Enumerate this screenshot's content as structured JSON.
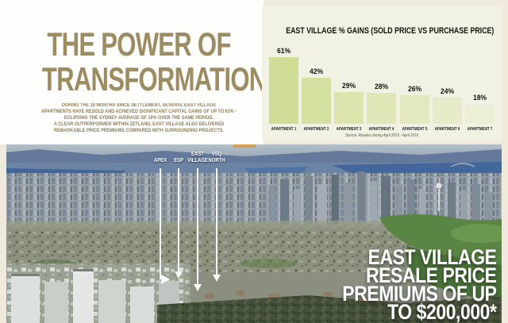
{
  "page": {
    "hero": {
      "title_line1": "THE POWER OF",
      "title_line2": "TRANSFORMATION",
      "body_lines": [
        "DURING THE 18 MONTHS SINCE SETTLEMENT, SEVERAL EAST VILLAGE",
        "APARTMENTS HAVE RESOLD AND ACHIEVED SIGNIFICANT CAPITAL GAINS OF UP TO 61% -",
        "ECLIPSING THE SYDNEY AVERAGE OF 18% OVER THE SAME PERIOD.",
        "A CLEAR OUTPERFORMER WITHIN ZETLAND, EAST VILLAGE ALSO DELIVERED",
        "REMARKABLE PRICE PREMIUMS COMPARED WITH SURROUNDING PROJECTS."
      ]
    },
    "photo": {
      "markers": [
        {
          "line1": "APEX",
          "line2": ""
        },
        {
          "line1": "ESP",
          "line2": ""
        },
        {
          "line1": "EAST",
          "line2": "VILLAGE"
        },
        {
          "line1": "VSQ",
          "line2": "NORTH"
        }
      ],
      "headline_lines": [
        "EAST VILLAGE",
        "RESALE PRICE",
        "PREMIUMS OF UP",
        "TO $200,000*"
      ]
    },
    "colors": {
      "title_gold": "#9d8c62",
      "body_gold": "#8d7c55",
      "page_bg": "#efeadb",
      "chart_panel_bg": "#f1f2e3",
      "headline_white": "#ffffff"
    }
  },
  "chart_data": {
    "type": "bar",
    "title": "EAST VILLAGE % GAINS (SOLD PRICE VS PURCHASE PRICE)",
    "categories": [
      "APARTMENT 1",
      "APARTMENT 2",
      "APARTMENT 3",
      "APARTMENT 4",
      "APARTMENT 5",
      "APARTMENT 6",
      "APARTMENT 7"
    ],
    "values": [
      61,
      42,
      29,
      28,
      26,
      24,
      18
    ],
    "value_labels": [
      "61%",
      "42%",
      "29%",
      "28%",
      "26%",
      "24%",
      "18%"
    ],
    "unit": "percent",
    "xlabel": "",
    "ylabel": "",
    "ylim": [
      0,
      65
    ],
    "grid": false,
    "legend": false,
    "bar_colors": [
      "#cfdd96",
      "#d5e1a1",
      "#dce5ae",
      "#dfe7b6",
      "#e2e9bf",
      "#e6ecc9",
      "#ebefd6"
    ],
    "source": "Source: Resales during April 2015 - April 2016"
  }
}
